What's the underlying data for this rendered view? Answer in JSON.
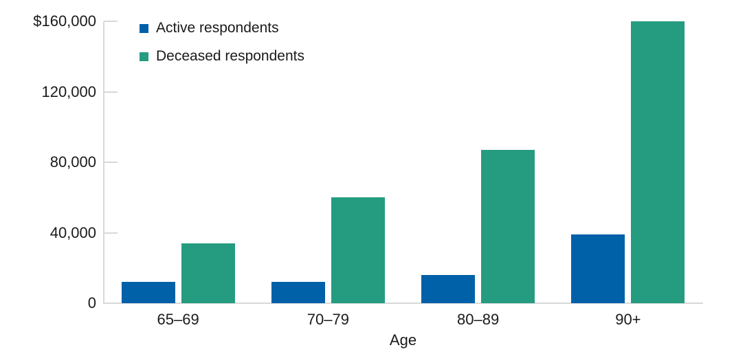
{
  "chart_data": {
    "type": "bar",
    "title": "",
    "categories": [
      "65–69",
      "70–79",
      "80–89",
      "90+"
    ],
    "series": [
      {
        "name": "Active respondents",
        "color": "#0060A8",
        "values": [
          12000,
          12000,
          16000,
          39000
        ]
      },
      {
        "name": "Deceased respondents",
        "color": "#259C80",
        "values": [
          34000,
          60000,
          87000,
          160000
        ]
      }
    ],
    "xlabel": "Age",
    "ylabel": "",
    "ylim": [
      0,
      160000
    ],
    "yticks": [
      {
        "value": 0,
        "label": "0"
      },
      {
        "value": 40000,
        "label": "40,000"
      },
      {
        "value": 80000,
        "label": "80,000"
      },
      {
        "value": 120000,
        "label": "120,000"
      },
      {
        "value": 160000,
        "label": "$160,000"
      }
    ],
    "legend_position": "top-left",
    "grid": false,
    "colors": {
      "axis": "#d8d8d8",
      "text": "#1a1a1a",
      "background": "#ffffff"
    }
  }
}
